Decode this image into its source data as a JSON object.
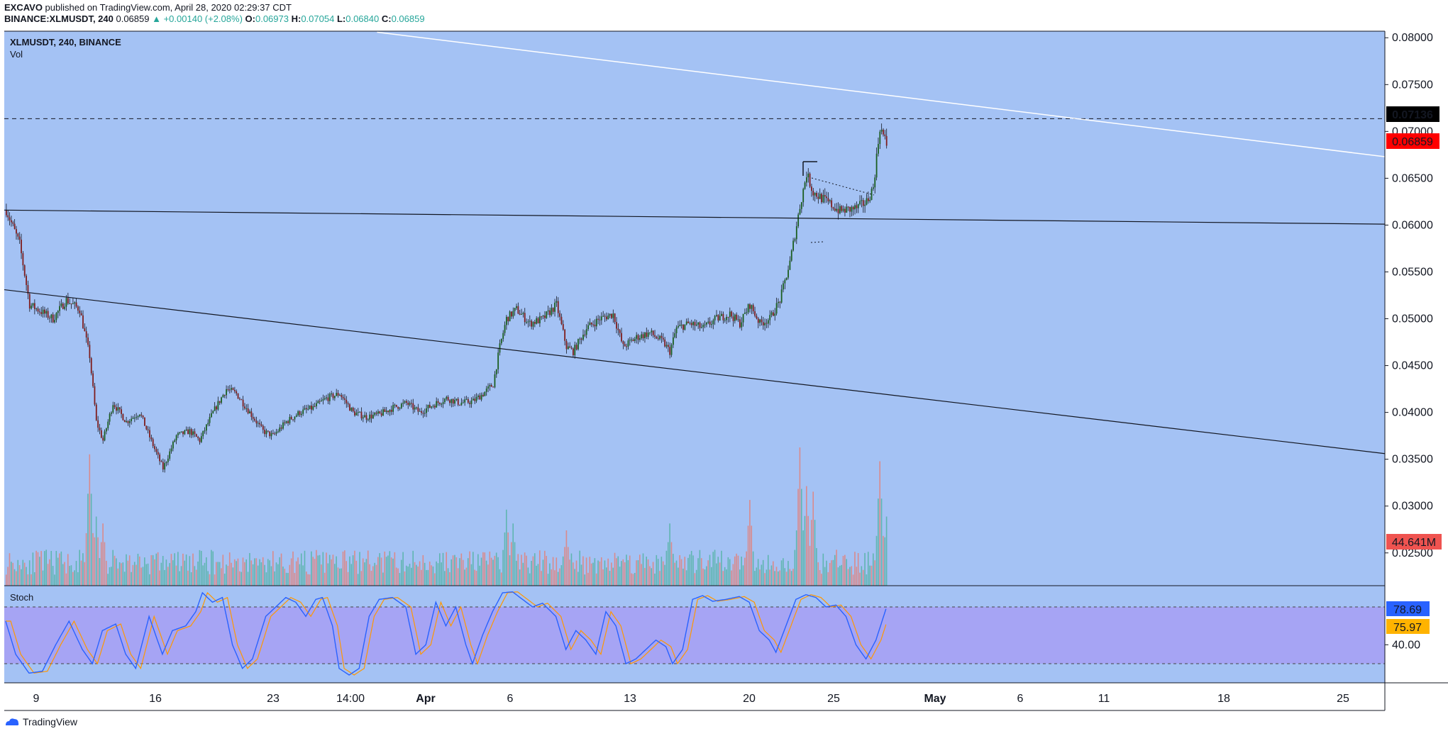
{
  "header": {
    "publisher": "EXCAVO",
    "published_text": " published on TradingView.com, April 28, 2020 02:29:37 CDT",
    "symbol_line": "BINANCE:XLMUSDT, 240",
    "last": "0.06859",
    "change": "▲ +0.00140 (+2.08%)",
    "o_label": "O:",
    "o": "0.06973",
    "h_label": "H:",
    "h": "0.07054",
    "l_label": "L:",
    "l": "0.06840",
    "c_label": "C:",
    "c": "0.06859"
  },
  "pane": {
    "title": "XLMUSDT, 240, BINANCE",
    "vol_label": "Vol",
    "stoch_label": "Stoch"
  },
  "badges": {
    "line_price": "0.07136",
    "last_price": "0.06859",
    "volume": "44.641M",
    "stoch_k": "78.69",
    "stoch_d": "75.97"
  },
  "colors": {
    "background": "#a4c2f4",
    "stoch_band": "#a6a4f4",
    "up": "#26a69a",
    "down": "#ef5350",
    "stoch_k": "#2962ff",
    "stoch_d": "#ff9800"
  },
  "footer": {
    "brand": "TradingView"
  },
  "chart_data": {
    "type": "candlestick",
    "y_ticks": [
      "0.08000",
      "0.07500",
      "0.07000",
      "0.06500",
      "0.06000",
      "0.05500",
      "0.05000",
      "0.04500",
      "0.04000",
      "0.03500",
      "0.03000",
      "0.02500"
    ],
    "ylim": [
      0.0215,
      0.0807
    ],
    "x_ticks": [
      "9",
      "16",
      "23",
      "14:00",
      "Apr",
      "6",
      "13",
      "20",
      "25",
      "May",
      "6",
      "11",
      "18",
      "25"
    ],
    "stoch_ticks": [
      "40.00"
    ],
    "stoch_levels": [
      80,
      20
    ],
    "horizontal_line": 0.07136,
    "trend_lines": [
      {
        "from": [
          0,
          0.0531
        ],
        "to": [
          1,
          0.0356
        ]
      },
      {
        "from": [
          0,
          0.0616
        ],
        "to": [
          1,
          0.0601
        ]
      },
      {
        "from": [
          0.27,
          0.0806
        ],
        "to": [
          1,
          0.0673
        ]
      }
    ],
    "waypoints": [
      [
        0,
        0.0616
      ],
      [
        8,
        0.058
      ],
      [
        14,
        0.0515
      ],
      [
        28,
        0.05
      ],
      [
        36,
        0.052
      ],
      [
        44,
        0.051
      ],
      [
        50,
        0.046
      ],
      [
        54,
        0.039
      ],
      [
        58,
        0.037
      ],
      [
        64,
        0.041
      ],
      [
        72,
        0.039
      ],
      [
        80,
        0.04
      ],
      [
        88,
        0.0365
      ],
      [
        94,
        0.034
      ],
      [
        102,
        0.0375
      ],
      [
        110,
        0.038
      ],
      [
        116,
        0.037
      ],
      [
        124,
        0.04
      ],
      [
        132,
        0.0425
      ],
      [
        138,
        0.042
      ],
      [
        146,
        0.04
      ],
      [
        154,
        0.038
      ],
      [
        160,
        0.0375
      ],
      [
        168,
        0.039
      ],
      [
        176,
        0.04
      ],
      [
        184,
        0.0405
      ],
      [
        192,
        0.0415
      ],
      [
        200,
        0.042
      ],
      [
        208,
        0.04
      ],
      [
        216,
        0.0395
      ],
      [
        224,
        0.0398
      ],
      [
        232,
        0.0405
      ],
      [
        240,
        0.041
      ],
      [
        248,
        0.04
      ],
      [
        256,
        0.0408
      ],
      [
        264,
        0.0415
      ],
      [
        272,
        0.041
      ],
      [
        280,
        0.0412
      ],
      [
        286,
        0.042
      ],
      [
        292,
        0.043
      ],
      [
        296,
        0.047
      ],
      [
        300,
        0.05
      ],
      [
        306,
        0.051
      ],
      [
        314,
        0.0495
      ],
      [
        322,
        0.05
      ],
      [
        330,
        0.0515
      ],
      [
        336,
        0.047
      ],
      [
        340,
        0.0465
      ],
      [
        348,
        0.049
      ],
      [
        356,
        0.05
      ],
      [
        364,
        0.0505
      ],
      [
        370,
        0.047
      ],
      [
        378,
        0.048
      ],
      [
        386,
        0.0485
      ],
      [
        394,
        0.0475
      ],
      [
        398,
        0.0465
      ],
      [
        402,
        0.049
      ],
      [
        410,
        0.0495
      ],
      [
        418,
        0.049
      ],
      [
        426,
        0.05
      ],
      [
        434,
        0.0505
      ],
      [
        440,
        0.0495
      ],
      [
        446,
        0.0515
      ],
      [
        452,
        0.0495
      ],
      [
        458,
        0.05
      ],
      [
        464,
        0.052
      ],
      [
        470,
        0.056
      ],
      [
        476,
        0.062
      ],
      [
        480,
        0.0655
      ],
      [
        484,
        0.0635
      ],
      [
        492,
        0.0625
      ],
      [
        500,
        0.0615
      ],
      [
        510,
        0.0618
      ],
      [
        516,
        0.0625
      ],
      [
        520,
        0.064
      ],
      [
        524,
        0.0705
      ],
      [
        528,
        0.0686
      ]
    ],
    "volume_peak_bars": [
      [
        50,
        0.95
      ],
      [
        54,
        0.5
      ],
      [
        58,
        0.45
      ],
      [
        300,
        0.55
      ],
      [
        304,
        0.45
      ],
      [
        336,
        0.4
      ],
      [
        398,
        0.45
      ],
      [
        446,
        0.62
      ],
      [
        476,
        1.0
      ],
      [
        480,
        0.72
      ],
      [
        484,
        0.68
      ],
      [
        524,
        0.9
      ],
      [
        528,
        0.5
      ]
    ],
    "stoch_waypoints": [
      [
        0,
        65
      ],
      [
        6,
        30
      ],
      [
        14,
        10
      ],
      [
        22,
        12
      ],
      [
        30,
        40
      ],
      [
        38,
        65
      ],
      [
        46,
        35
      ],
      [
        52,
        20
      ],
      [
        58,
        55
      ],
      [
        66,
        62
      ],
      [
        72,
        30
      ],
      [
        78,
        15
      ],
      [
        86,
        70
      ],
      [
        94,
        30
      ],
      [
        100,
        55
      ],
      [
        108,
        60
      ],
      [
        114,
        75
      ],
      [
        118,
        95
      ],
      [
        124,
        85
      ],
      [
        130,
        90
      ],
      [
        136,
        40
      ],
      [
        142,
        15
      ],
      [
        148,
        25
      ],
      [
        156,
        70
      ],
      [
        162,
        80
      ],
      [
        168,
        90
      ],
      [
        174,
        85
      ],
      [
        180,
        70
      ],
      [
        186,
        88
      ],
      [
        190,
        90
      ],
      [
        196,
        60
      ],
      [
        200,
        15
      ],
      [
        206,
        8
      ],
      [
        212,
        15
      ],
      [
        218,
        70
      ],
      [
        224,
        88
      ],
      [
        232,
        90
      ],
      [
        240,
        80
      ],
      [
        246,
        30
      ],
      [
        252,
        40
      ],
      [
        258,
        85
      ],
      [
        264,
        60
      ],
      [
        270,
        80
      ],
      [
        276,
        40
      ],
      [
        280,
        20
      ],
      [
        286,
        50
      ],
      [
        292,
        75
      ],
      [
        298,
        95
      ],
      [
        304,
        96
      ],
      [
        310,
        88
      ],
      [
        316,
        80
      ],
      [
        322,
        84
      ],
      [
        330,
        70
      ],
      [
        336,
        35
      ],
      [
        342,
        55
      ],
      [
        348,
        45
      ],
      [
        354,
        30
      ],
      [
        360,
        75
      ],
      [
        366,
        60
      ],
      [
        372,
        20
      ],
      [
        378,
        25
      ],
      [
        384,
        35
      ],
      [
        390,
        45
      ],
      [
        396,
        38
      ],
      [
        400,
        20
      ],
      [
        406,
        35
      ],
      [
        412,
        88
      ],
      [
        418,
        92
      ],
      [
        424,
        86
      ],
      [
        432,
        88
      ],
      [
        440,
        91
      ],
      [
        446,
        85
      ],
      [
        452,
        55
      ],
      [
        458,
        45
      ],
      [
        462,
        32
      ],
      [
        468,
        60
      ],
      [
        474,
        88
      ],
      [
        480,
        93
      ],
      [
        486,
        90
      ],
      [
        492,
        80
      ],
      [
        498,
        82
      ],
      [
        504,
        70
      ],
      [
        510,
        40
      ],
      [
        516,
        25
      ],
      [
        522,
        45
      ],
      [
        528,
        78
      ]
    ],
    "series": [
      {
        "name": "Vol"
      },
      {
        "name": "Stoch"
      }
    ]
  }
}
